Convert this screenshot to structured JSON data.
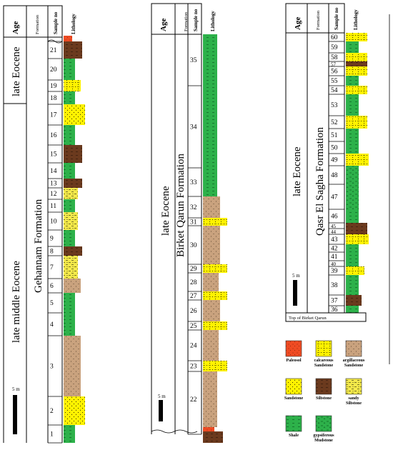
{
  "headers": {
    "age": "Age",
    "formation": "Formation",
    "sample": "Sample no",
    "lithology": "Lithology"
  },
  "columns": [
    {
      "id": "col1",
      "ages": [
        "late Eocene",
        "late middle Eocene"
      ],
      "formation": "Gehannam Formation",
      "scale_label": "5 m",
      "unconformity_top": true,
      "samples": [
        {
          "no": "1",
          "lith": "shale"
        },
        {
          "no": "2",
          "lith": "sandstone"
        },
        {
          "no": "3",
          "lith": "argillaceous_sandstone"
        },
        {
          "no": "4",
          "lith": "shale"
        },
        {
          "no": "5",
          "lith": "shale"
        },
        {
          "no": "6",
          "lith": "argillaceous_sandstone"
        },
        {
          "no": "7",
          "lith": "sandy_siltstone"
        },
        {
          "no": "8",
          "lith": "siltstone"
        },
        {
          "no": "9",
          "lith": "shale"
        },
        {
          "no": "10",
          "lith": "sandy_siltstone"
        },
        {
          "no": "11",
          "lith": "shale"
        },
        {
          "no": "12",
          "lith": "sandy_siltstone"
        },
        {
          "no": "13",
          "lith": "siltstone"
        },
        {
          "no": "14",
          "lith": "shale"
        },
        {
          "no": "15",
          "lith": "siltstone"
        },
        {
          "no": "16",
          "lith": "shale"
        },
        {
          "no": "17",
          "lith": "sandstone"
        },
        {
          "no": "18",
          "lith": "shale"
        },
        {
          "no": "19",
          "lith": "calcareous_sandstone"
        },
        {
          "no": "20",
          "lith": "shale"
        },
        {
          "no": "21",
          "lith": "siltstone"
        }
      ]
    },
    {
      "id": "col2",
      "ages": [
        "late Eocene"
      ],
      "formation": "Birket Qarun Formation",
      "scale_label": "5 m",
      "unconformity_bottom": true,
      "samples": [
        {
          "no": "22",
          "lith": "argillaceous_sandstone"
        },
        {
          "no": "23",
          "lith": "calcareous_sandstone"
        },
        {
          "no": "24",
          "lith": "argillaceous_sandstone"
        },
        {
          "no": "25",
          "lith": "calcareous_sandstone"
        },
        {
          "no": "26",
          "lith": "argillaceous_sandstone"
        },
        {
          "no": "27",
          "lith": "calcareous_sandstone"
        },
        {
          "no": "28",
          "lith": "argillaceous_sandstone"
        },
        {
          "no": "29",
          "lith": "calcareous_sandstone"
        },
        {
          "no": "30",
          "lith": "argillaceous_sandstone"
        },
        {
          "no": "31",
          "lith": "calcareous_sandstone"
        },
        {
          "no": "32",
          "lith": "argillaceous_sandstone"
        },
        {
          "no": "33",
          "lith": "shale"
        },
        {
          "no": "34",
          "lith": "shale"
        },
        {
          "no": "35",
          "lith": "shale"
        }
      ]
    },
    {
      "id": "col3",
      "ages": [
        "late Eocene"
      ],
      "formation": "Qasr El Sagha Formation",
      "scale_label": "5 m",
      "base_note": "Top of Birket Qarun",
      "samples": [
        {
          "no": "36",
          "lith": "shale"
        },
        {
          "no": "37",
          "lith": "siltstone"
        },
        {
          "no": "38",
          "lith": "shale"
        },
        {
          "no": "39",
          "lith": "calcareous_sandstone"
        },
        {
          "no": "40",
          "lith": "shale"
        },
        {
          "no": "41",
          "lith": "shale"
        },
        {
          "no": "42",
          "lith": "shale"
        },
        {
          "no": "43",
          "lith": "calcareous_sandstone"
        },
        {
          "no": "44",
          "lith": "siltstone"
        },
        {
          "no": "45",
          "lith": "siltstone"
        },
        {
          "no": "46",
          "lith": "shale"
        },
        {
          "no": "47",
          "lith": "gypsiferous_mudstone"
        },
        {
          "no": "48",
          "lith": "gypsiferous_mudstone"
        },
        {
          "no": "49",
          "lith": "calcareous_sandstone"
        },
        {
          "no": "50",
          "lith": "shale"
        },
        {
          "no": "51",
          "lith": "shale"
        },
        {
          "no": "52",
          "lith": "calcareous_sandstone"
        },
        {
          "no": "53",
          "lith": "shale"
        },
        {
          "no": "54",
          "lith": "calcareous_sandstone"
        },
        {
          "no": "55",
          "lith": "shale"
        },
        {
          "no": "56",
          "lith": "calcareous_sandstone"
        },
        {
          "no": "57",
          "lith": "siltstone"
        },
        {
          "no": "58",
          "lith": "calcareous_sandstone"
        },
        {
          "no": "59",
          "lith": "shale"
        },
        {
          "no": "60",
          "lith": "calcareous_sandstone"
        }
      ]
    }
  ],
  "legend": [
    {
      "key": "paleosol",
      "label": "Paleosol"
    },
    {
      "key": "calcareous_sandstone",
      "label": "calcareous Sandstone"
    },
    {
      "key": "argillaceous_sandstone",
      "label": "argillaceous Sandstone"
    },
    {
      "key": "sandstone",
      "label": "Sandstone"
    },
    {
      "key": "siltstone",
      "label": "Siltstone"
    },
    {
      "key": "sandy_siltstone",
      "label": "sandy Siltstone"
    },
    {
      "key": "shale",
      "label": "Shale"
    },
    {
      "key": "gypsiferous_mudstone",
      "label": "gypsiferous Mudstone"
    }
  ],
  "colors": {
    "shale": "#2db14a",
    "sandstone": "#fff200",
    "calcareous_sandstone": "#fff200",
    "sandy_siltstone": "#f3e94a",
    "argillaceous_sandstone": "#c9a27e",
    "siltstone": "#6b3a1e",
    "paleosol": "#ef4b23",
    "gypsiferous_mudstone": "#2db14a"
  }
}
